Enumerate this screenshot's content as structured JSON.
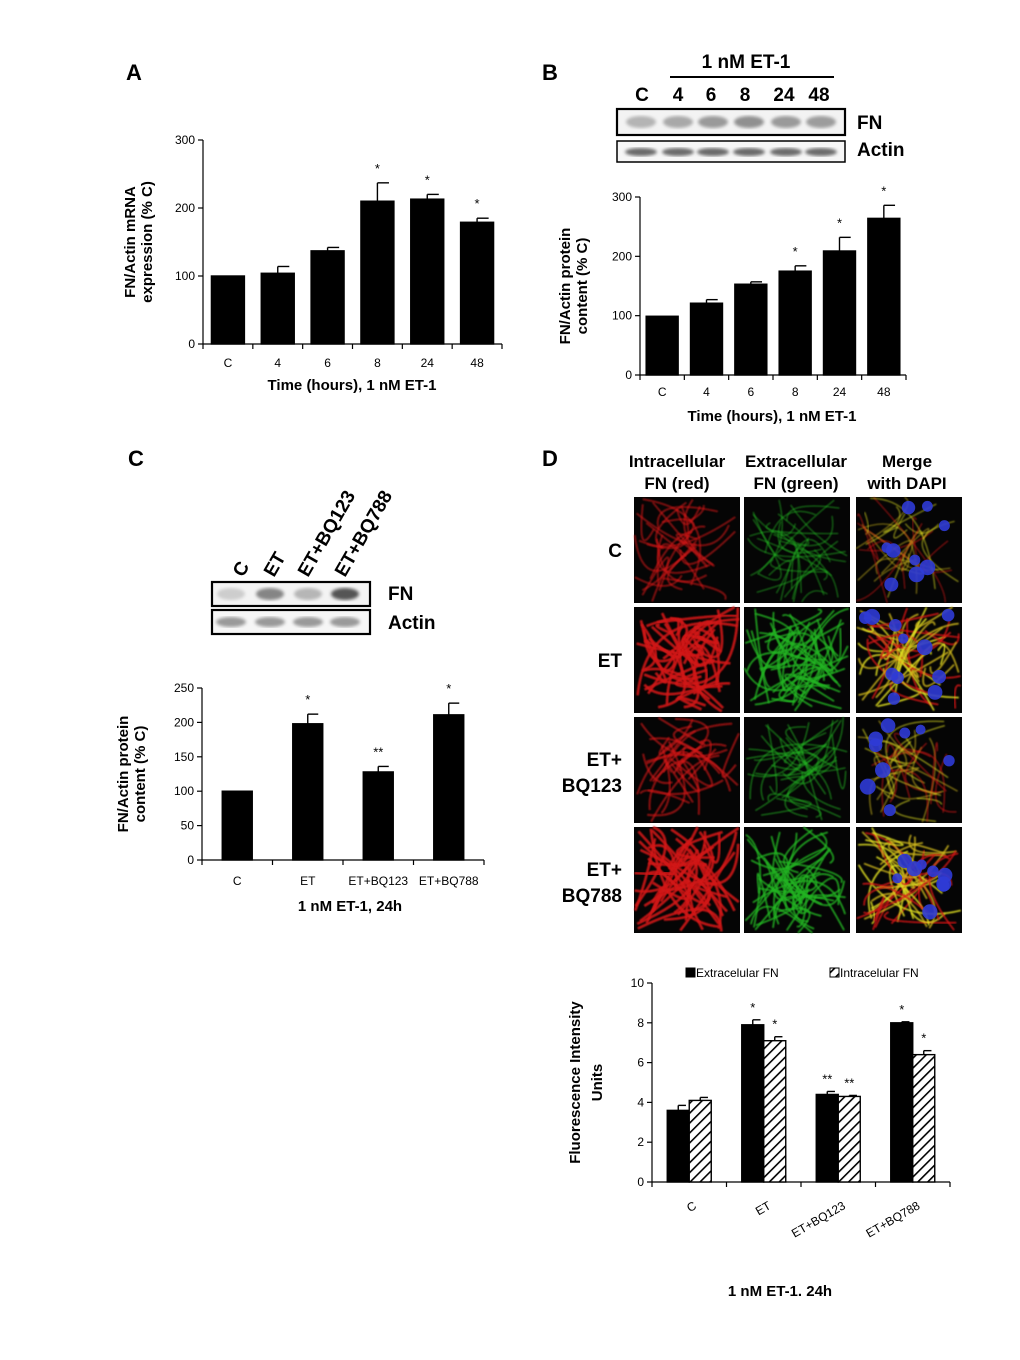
{
  "panels": {
    "A": "A",
    "B": "B",
    "C": "C",
    "D": "D"
  },
  "colors": {
    "bar": "#000000",
    "red_channel": "#d11414",
    "green_channel": "#23b423",
    "dapi": "#2f3bd6"
  },
  "blot_B": {
    "treatment": "1 nM ET-1",
    "lanes": [
      "C",
      "4",
      "6",
      "8",
      "24",
      "48"
    ],
    "rows": [
      "FN",
      "Actin"
    ]
  },
  "blot_C": {
    "lanes": [
      "C",
      "ET",
      "ET+BQ123",
      "ET+BQ788"
    ],
    "rows": [
      "FN",
      "Actin"
    ]
  },
  "micrographs": {
    "columns": [
      "Intracellular FN (red)",
      "Extracellular FN (green)",
      "Merge with DAPI"
    ],
    "rows": [
      "C",
      "ET",
      "ET+\nBQ123",
      "ET+\nBQ788"
    ]
  },
  "chart_data": [
    {
      "id": "A",
      "type": "bar",
      "categories": [
        "C",
        "4",
        "6",
        "8",
        "24",
        "48"
      ],
      "values": [
        100,
        104,
        137,
        210,
        213,
        179
      ],
      "errors": [
        0,
        10,
        5,
        27,
        7,
        6
      ],
      "significance": [
        "",
        "",
        "",
        "*",
        "*",
        "*"
      ],
      "ylim": [
        0,
        300
      ],
      "yticks": [
        0,
        100,
        200,
        300
      ],
      "xlabel": "Time (hours), 1 nM ET-1",
      "ylabel": [
        "FN/Actin mRNA",
        "expression (% C)"
      ]
    },
    {
      "id": "B",
      "type": "bar",
      "categories": [
        "C",
        "4",
        "6",
        "8",
        "24",
        "48"
      ],
      "values": [
        99,
        121,
        153,
        175,
        209,
        264
      ],
      "errors": [
        0,
        6,
        4,
        9,
        23,
        22
      ],
      "significance": [
        "",
        "",
        "",
        "*",
        "*",
        "*"
      ],
      "ylim": [
        0,
        300
      ],
      "yticks": [
        0,
        100,
        200,
        300
      ],
      "xlabel": "Time (hours), 1 nM ET-1",
      "ylabel": [
        "FN/Actin protein",
        "content (% C)"
      ]
    },
    {
      "id": "C",
      "type": "bar",
      "categories": [
        "C",
        "ET",
        "ET+BQ123",
        "ET+BQ788"
      ],
      "values": [
        100,
        198,
        128,
        211
      ],
      "errors": [
        0,
        14,
        8,
        17
      ],
      "significance": [
        "",
        "*",
        "**",
        "*"
      ],
      "ylim": [
        0,
        250
      ],
      "yticks": [
        0,
        50,
        100,
        150,
        200,
        250
      ],
      "xlabel": "1 nM ET-1, 24h",
      "ylabel": [
        "FN/Actin protein",
        "content (% C)"
      ]
    },
    {
      "id": "D",
      "type": "bar",
      "categories": [
        "C",
        "ET",
        "ET+BQ123",
        "ET+BQ788"
      ],
      "series": [
        {
          "name": "Extracelular FN",
          "values": [
            3.6,
            7.9,
            4.4,
            8.0
          ],
          "errors": [
            0.25,
            0.25,
            0.15,
            0.05
          ],
          "significance": [
            "",
            "*",
            "**",
            "*"
          ]
        },
        {
          "name": "Intracelular FN",
          "values": [
            4.1,
            7.1,
            4.3,
            6.4
          ],
          "errors": [
            0.15,
            0.2,
            0.05,
            0.2
          ],
          "significance": [
            "",
            "*",
            "**",
            "*"
          ]
        }
      ],
      "ylim": [
        0,
        10
      ],
      "yticks": [
        0,
        2,
        4,
        6,
        8,
        10
      ],
      "xlabel": "1 nM ET-1. 24h",
      "ylabel": [
        "Fluorescence Intensity",
        "Units"
      ],
      "legend_position": "top"
    }
  ]
}
